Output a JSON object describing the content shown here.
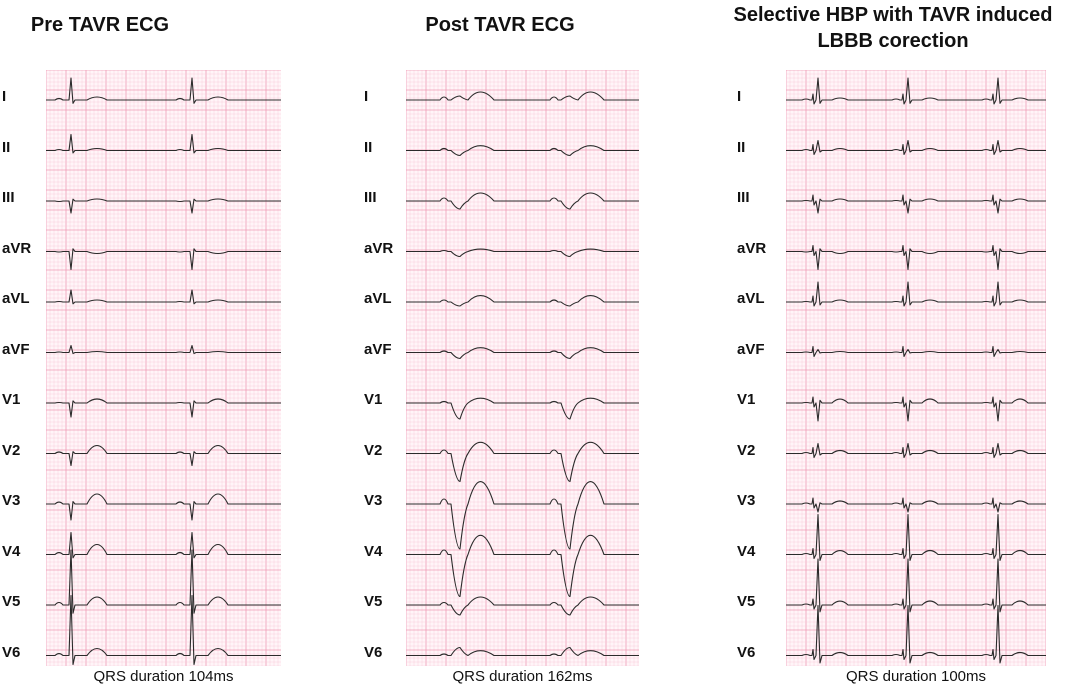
{
  "panels": [
    {
      "id": "pre",
      "title_lines": [
        "Pre TAVR ECG"
      ],
      "caption": "QRS duration 104ms",
      "beats": 2,
      "morphology": "narrow",
      "leads": [
        "I",
        "II",
        "III",
        "aVR",
        "aVL",
        "aVF",
        "V1",
        "V2",
        "V3",
        "V4",
        "V5",
        "V6"
      ]
    },
    {
      "id": "post",
      "title_lines": [
        "Post TAVR ECG"
      ],
      "caption": "QRS duration 162ms",
      "beats": 2,
      "morphology": "lbbb",
      "leads": [
        "I",
        "II",
        "III",
        "aVR",
        "aVL",
        "aVF",
        "V1",
        "V2",
        "V3",
        "V4",
        "V5",
        "V6"
      ]
    },
    {
      "id": "hbp",
      "title_lines": [
        "Selective HBP with TAVR induced",
        "LBBB corection"
      ],
      "caption": "QRS duration 100ms",
      "beats": 3,
      "morphology": "paced",
      "leads": [
        "I",
        "II",
        "III",
        "aVR",
        "aVL",
        "aVF",
        "V1",
        "V2",
        "V3",
        "V4",
        "V5",
        "V6"
      ]
    }
  ],
  "colors": {
    "grid_minor": "#f7c6d6",
    "grid_major": "#ef9bb6",
    "paper": "#fff5f8",
    "trace": "#2b2b2b"
  }
}
